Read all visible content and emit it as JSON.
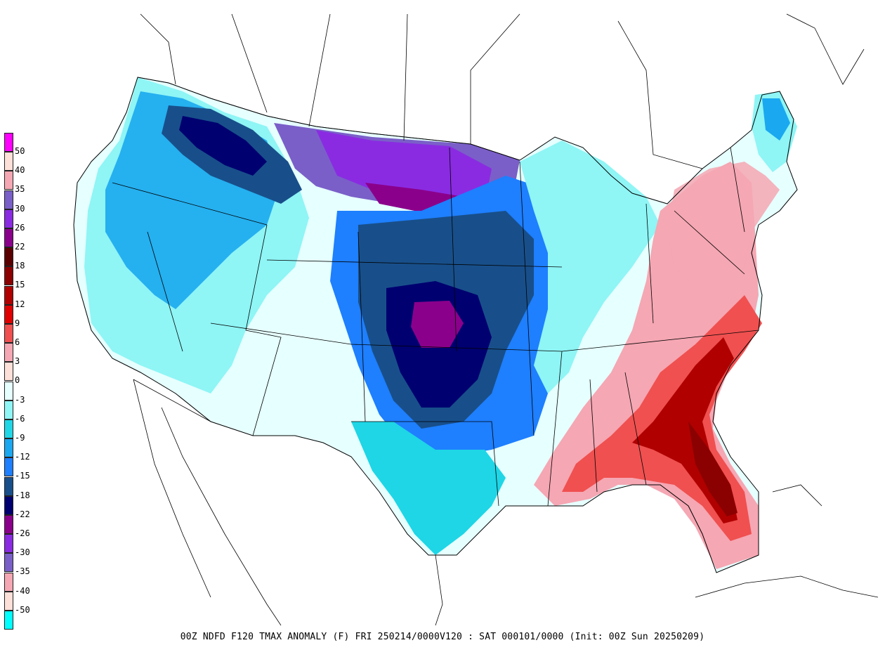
{
  "caption": "00Z NDFD F120 TMAX ANOMALY (F)  FRI 250214/0000V120 : SAT 000101/0000 (Init: 00Z Sun 20250209)",
  "legend": {
    "items": [
      {
        "label": "50",
        "color": "#ff00ff"
      },
      {
        "label": "40",
        "color": "#fde0d8"
      },
      {
        "label": "35",
        "color": "#f5a7b3"
      },
      {
        "label": "30",
        "color": "#7a5fc8"
      },
      {
        "label": "26",
        "color": "#8a2be2"
      },
      {
        "label": "22",
        "color": "#8b008b"
      },
      {
        "label": "18",
        "color": "#5a0000"
      },
      {
        "label": "15",
        "color": "#8b0000"
      },
      {
        "label": "12",
        "color": "#b00000"
      },
      {
        "label": "9",
        "color": "#e00000"
      },
      {
        "label": "6",
        "color": "#f05050"
      },
      {
        "label": "3",
        "color": "#f5a7b3"
      },
      {
        "label": "0",
        "color": "#fde0d8"
      },
      {
        "label": "-3",
        "color": "#e6ffff"
      },
      {
        "label": "-6",
        "color": "#8ff5f5"
      },
      {
        "label": "-9",
        "color": "#1ed6e6"
      },
      {
        "label": "-12",
        "color": "#1aa8f0"
      },
      {
        "label": "-15",
        "color": "#1e7fff"
      },
      {
        "label": "-18",
        "color": "#184f8a"
      },
      {
        "label": "-22",
        "color": "#000070"
      },
      {
        "label": "-26",
        "color": "#8b008b"
      },
      {
        "label": "-30",
        "color": "#8a2be2"
      },
      {
        "label": "-35",
        "color": "#7a5fc8"
      },
      {
        "label": "-40",
        "color": "#f5a7b3"
      },
      {
        "label": "-50",
        "color": "#fde0d8"
      },
      {
        "label": "",
        "color": "#00ffff"
      }
    ]
  }
}
